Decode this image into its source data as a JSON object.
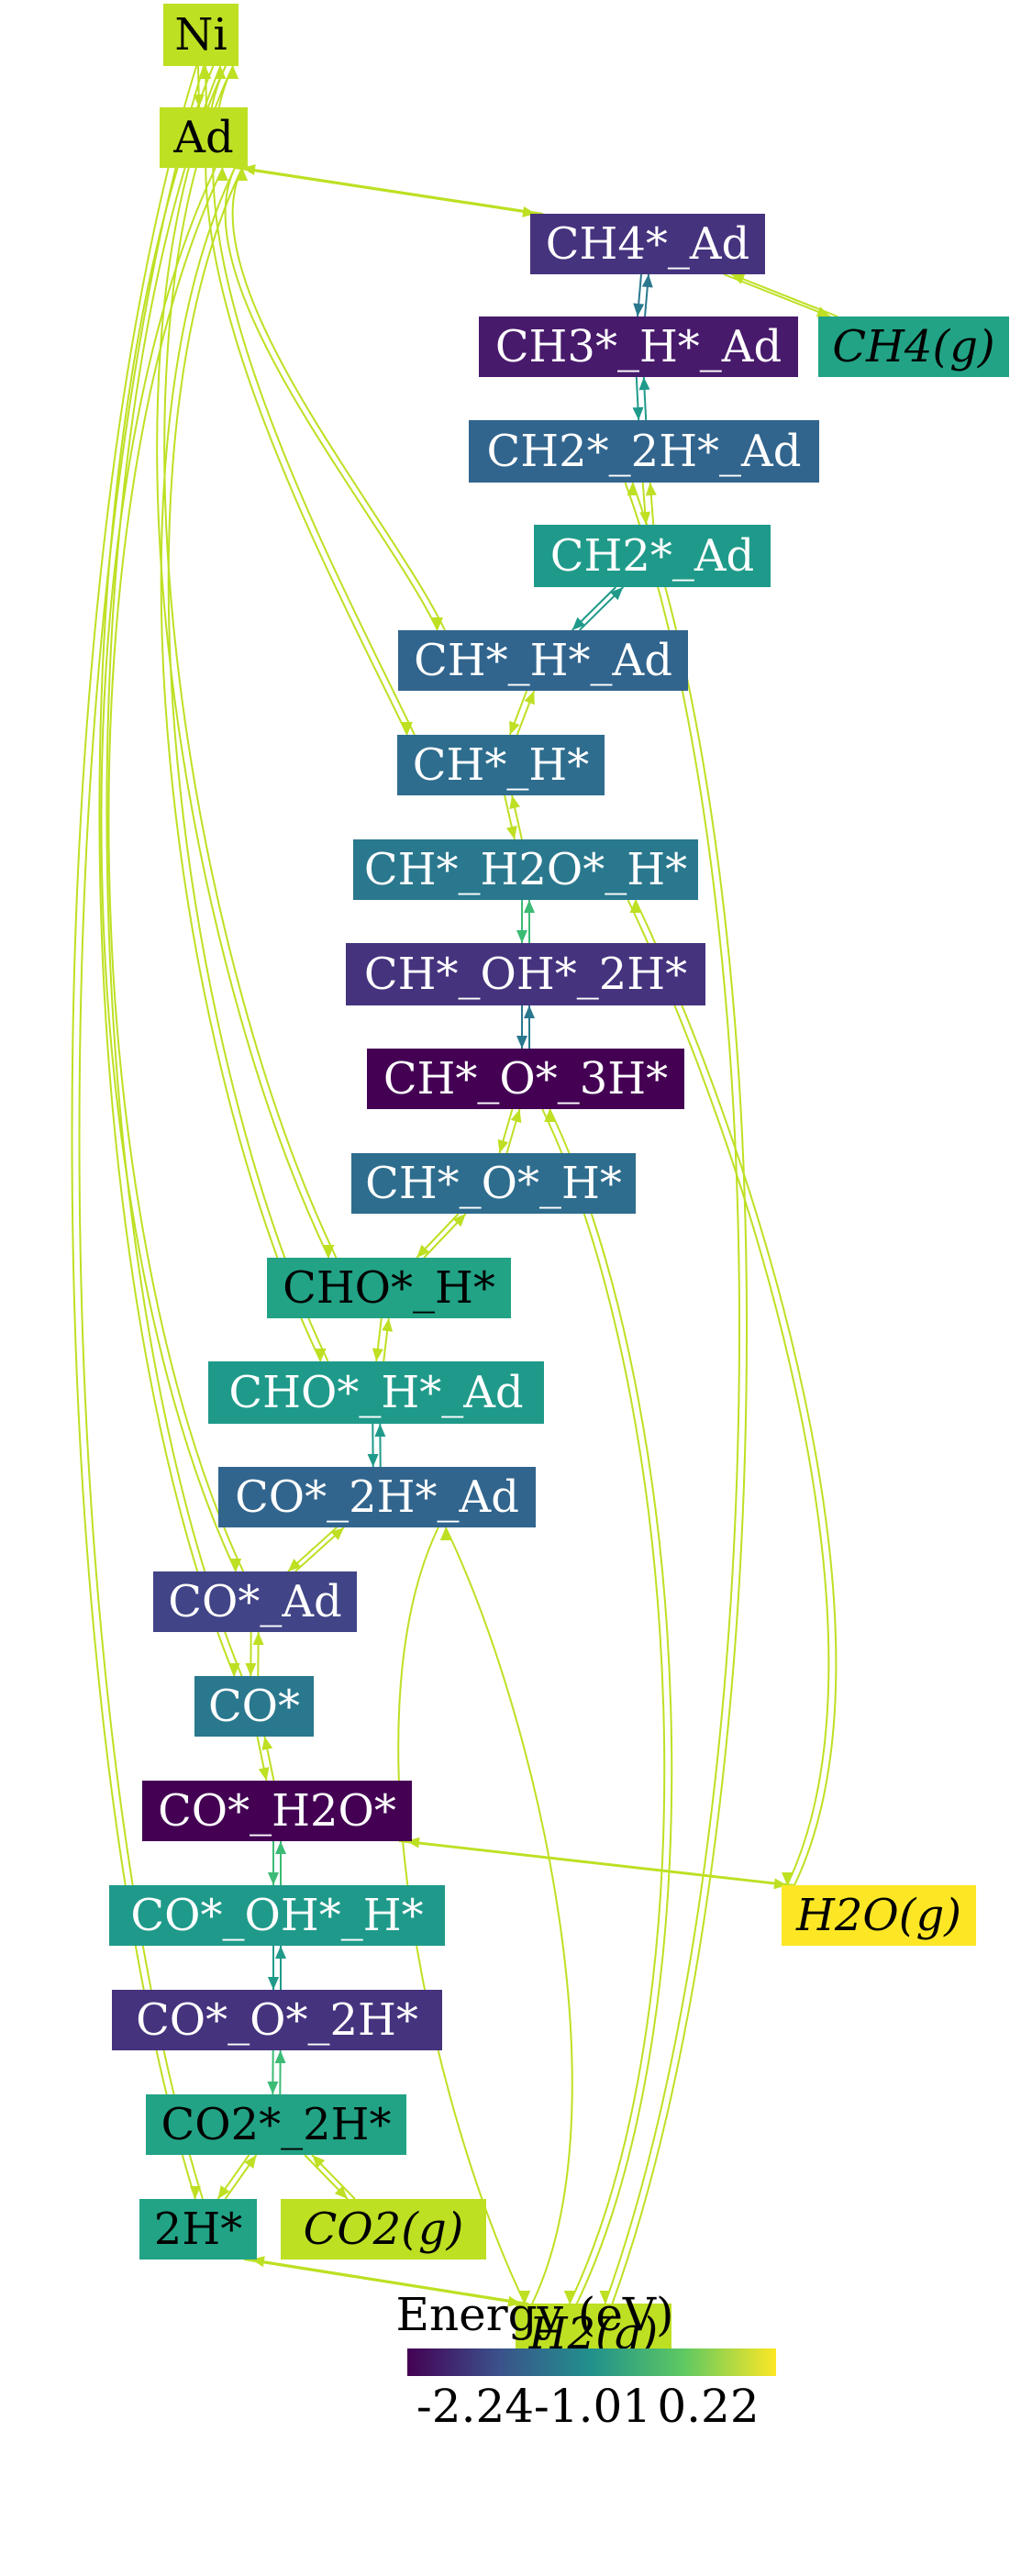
{
  "colors": {
    "light_green": "#bde023",
    "yellow": "#fde725",
    "teal_green": "#22a385",
    "mid_teal": "#1f9a8a",
    "teal_blue": "#2a788e",
    "blue": "#2e6d8e",
    "dark_blue": "#31658e",
    "indigo": "#414487",
    "purple": "#46337e",
    "deep_purple": "#481a6c",
    "darkest": "#440154"
  },
  "nodes": [
    {
      "id": "Ni",
      "label": "Ni",
      "color": "#bde023",
      "text_color": "#000000",
      "gas": false
    },
    {
      "id": "Ad",
      "label": "Ad",
      "color": "#bde023",
      "text_color": "#000000",
      "gas": false
    },
    {
      "id": "CH4_Ad",
      "label": "CH4*_Ad",
      "color": "#46337e",
      "text_color": "#ffffff",
      "gas": false
    },
    {
      "id": "CH3_H_Ad",
      "label": "CH3*_H*_Ad",
      "color": "#481a6c",
      "text_color": "#ffffff",
      "gas": false
    },
    {
      "id": "CH4g",
      "label": "CH4(g)",
      "color": "#22a385",
      "text_color": "#000000",
      "gas": true
    },
    {
      "id": "CH2_2H_Ad",
      "label": "CH2*_2H*_Ad",
      "color": "#31658e",
      "text_color": "#ffffff",
      "gas": false
    },
    {
      "id": "CH2_Ad",
      "label": "CH2*_Ad",
      "color": "#1f9a8a",
      "text_color": "#ffffff",
      "gas": false
    },
    {
      "id": "CH_H_Ad",
      "label": "CH*_H*_Ad",
      "color": "#31658e",
      "text_color": "#ffffff",
      "gas": false
    },
    {
      "id": "CH_H",
      "label": "CH*_H*",
      "color": "#2e6d8e",
      "text_color": "#ffffff",
      "gas": false
    },
    {
      "id": "CH_H2O_H",
      "label": "CH*_H2O*_H*",
      "color": "#2a788e",
      "text_color": "#ffffff",
      "gas": false
    },
    {
      "id": "CH_OH_2H",
      "label": "CH*_OH*_2H*",
      "color": "#46337e",
      "text_color": "#ffffff",
      "gas": false
    },
    {
      "id": "CH_O_3H",
      "label": "CH*_O*_3H*",
      "color": "#440154",
      "text_color": "#ffffff",
      "gas": false
    },
    {
      "id": "CH_O_H",
      "label": "CH*_O*_H*",
      "color": "#2e6d8e",
      "text_color": "#ffffff",
      "gas": false
    },
    {
      "id": "CHO_H",
      "label": "CHO*_H*",
      "color": "#22a385",
      "text_color": "#000000",
      "gas": false
    },
    {
      "id": "CHO_H_Ad",
      "label": "CHO*_H*_Ad",
      "color": "#1f9a8a",
      "text_color": "#ffffff",
      "gas": false
    },
    {
      "id": "CO_2H_Ad",
      "label": "CO*_2H*_Ad",
      "color": "#31658e",
      "text_color": "#ffffff",
      "gas": false
    },
    {
      "id": "CO_Ad",
      "label": "CO*_Ad",
      "color": "#414487",
      "text_color": "#ffffff",
      "gas": false
    },
    {
      "id": "CO",
      "label": "CO*",
      "color": "#2a788e",
      "text_color": "#ffffff",
      "gas": false
    },
    {
      "id": "CO_H2O",
      "label": "CO*_H2O*",
      "color": "#440154",
      "text_color": "#ffffff",
      "gas": false
    },
    {
      "id": "H2Og",
      "label": "H2O(g)",
      "color": "#fde725",
      "text_color": "#000000",
      "gas": true
    },
    {
      "id": "CO_OH_H",
      "label": "CO*_OH*_H*",
      "color": "#1f9a8a",
      "text_color": "#ffffff",
      "gas": false
    },
    {
      "id": "CO_O_2H",
      "label": "CO*_O*_2H*",
      "color": "#46337e",
      "text_color": "#ffffff",
      "gas": false
    },
    {
      "id": "CO2_2H",
      "label": "CO2*_2H*",
      "color": "#22a385",
      "text_color": "#000000",
      "gas": false
    },
    {
      "id": "H2",
      "label": "2H*",
      "color": "#22a385",
      "text_color": "#000000",
      "gas": false
    },
    {
      "id": "CO2g",
      "label": "CO2(g)",
      "color": "#bde023",
      "text_color": "#000000",
      "gas": true
    },
    {
      "id": "H2g",
      "label": "H2(g)",
      "color": "#bde023",
      "text_color": "#000000",
      "gas": true
    }
  ],
  "edges": [
    {
      "from": "Ni",
      "to": "Ad",
      "color": "#bde023"
    },
    {
      "from": "Ad",
      "to": "CH4_Ad",
      "color": "#bde023"
    },
    {
      "from": "CH4_Ad",
      "to": "CH3_H_Ad",
      "color": "#2a788e"
    },
    {
      "from": "CH4_Ad",
      "to": "CH4g",
      "color": "#bde023"
    },
    {
      "from": "CH3_H_Ad",
      "to": "CH2_2H_Ad",
      "color": "#1f9a8a"
    },
    {
      "from": "CH2_2H_Ad",
      "to": "CH2_Ad",
      "color": "#bde023"
    },
    {
      "from": "CH2_2H_Ad",
      "to": "H2g",
      "color": "#bde023"
    },
    {
      "from": "CH2_Ad",
      "to": "CH_H_Ad",
      "color": "#1f9a8a"
    },
    {
      "from": "Ad",
      "to": "CH_H_Ad",
      "color": "#bde023"
    },
    {
      "from": "CH_H_Ad",
      "to": "CH_H",
      "color": "#bde023"
    },
    {
      "from": "Ni",
      "to": "CH_H",
      "color": "#bde023"
    },
    {
      "from": "CH_H",
      "to": "CH_H2O_H",
      "color": "#bde023"
    },
    {
      "from": "CH_H2O_H",
      "to": "CH_OH_2H",
      "color": "#3cbb75"
    },
    {
      "from": "CH_H2O_H",
      "to": "H2Og",
      "color": "#bde023"
    },
    {
      "from": "CH_OH_2H",
      "to": "CH_O_3H",
      "color": "#2a788e"
    },
    {
      "from": "CH_O_3H",
      "to": "CH_O_H",
      "color": "#bde023"
    },
    {
      "from": "CH_O_3H",
      "to": "H2g",
      "color": "#bde023"
    },
    {
      "from": "CH_O_H",
      "to": "CHO_H",
      "color": "#bde023"
    },
    {
      "from": "Ni",
      "to": "CHO_H",
      "color": "#bde023"
    },
    {
      "from": "CHO_H",
      "to": "CHO_H_Ad",
      "color": "#bde023"
    },
    {
      "from": "Ad",
      "to": "CHO_H_Ad",
      "color": "#bde023"
    },
    {
      "from": "CHO_H_Ad",
      "to": "CO_2H_Ad",
      "color": "#1f9a8a"
    },
    {
      "from": "CO_2H_Ad",
      "to": "CO_Ad",
      "color": "#bde023"
    },
    {
      "from": "CO_2H_Ad",
      "to": "H2g",
      "color": "#bde023"
    },
    {
      "from": "Ad",
      "to": "CO_Ad",
      "color": "#bde023"
    },
    {
      "from": "CO_Ad",
      "to": "CO",
      "color": "#bde023"
    },
    {
      "from": "Ni",
      "to": "CO",
      "color": "#bde023"
    },
    {
      "from": "CO",
      "to": "CO_H2O",
      "color": "#bde023"
    },
    {
      "from": "CO_H2O",
      "to": "H2Og",
      "color": "#bde023"
    },
    {
      "from": "CO_H2O",
      "to": "CO_OH_H",
      "color": "#3cbb75"
    },
    {
      "from": "CO_OH_H",
      "to": "CO_O_2H",
      "color": "#1f9a8a"
    },
    {
      "from": "CO_O_2H",
      "to": "CO2_2H",
      "color": "#3cbb75"
    },
    {
      "from": "CO2_2H",
      "to": "H2",
      "color": "#bde023"
    },
    {
      "from": "CO2_2H",
      "to": "CO2g",
      "color": "#bde023"
    },
    {
      "from": "Ni",
      "to": "H2",
      "color": "#bde023"
    },
    {
      "from": "H2",
      "to": "H2g",
      "color": "#bde023"
    }
  ],
  "colorbar": {
    "title": "Energy (eV)",
    "ticks": [
      "-2.24",
      "-1.01",
      "0.22"
    ],
    "stops": [
      "#440154",
      "#3b528b",
      "#21918c",
      "#5ec962",
      "#fde725"
    ]
  }
}
